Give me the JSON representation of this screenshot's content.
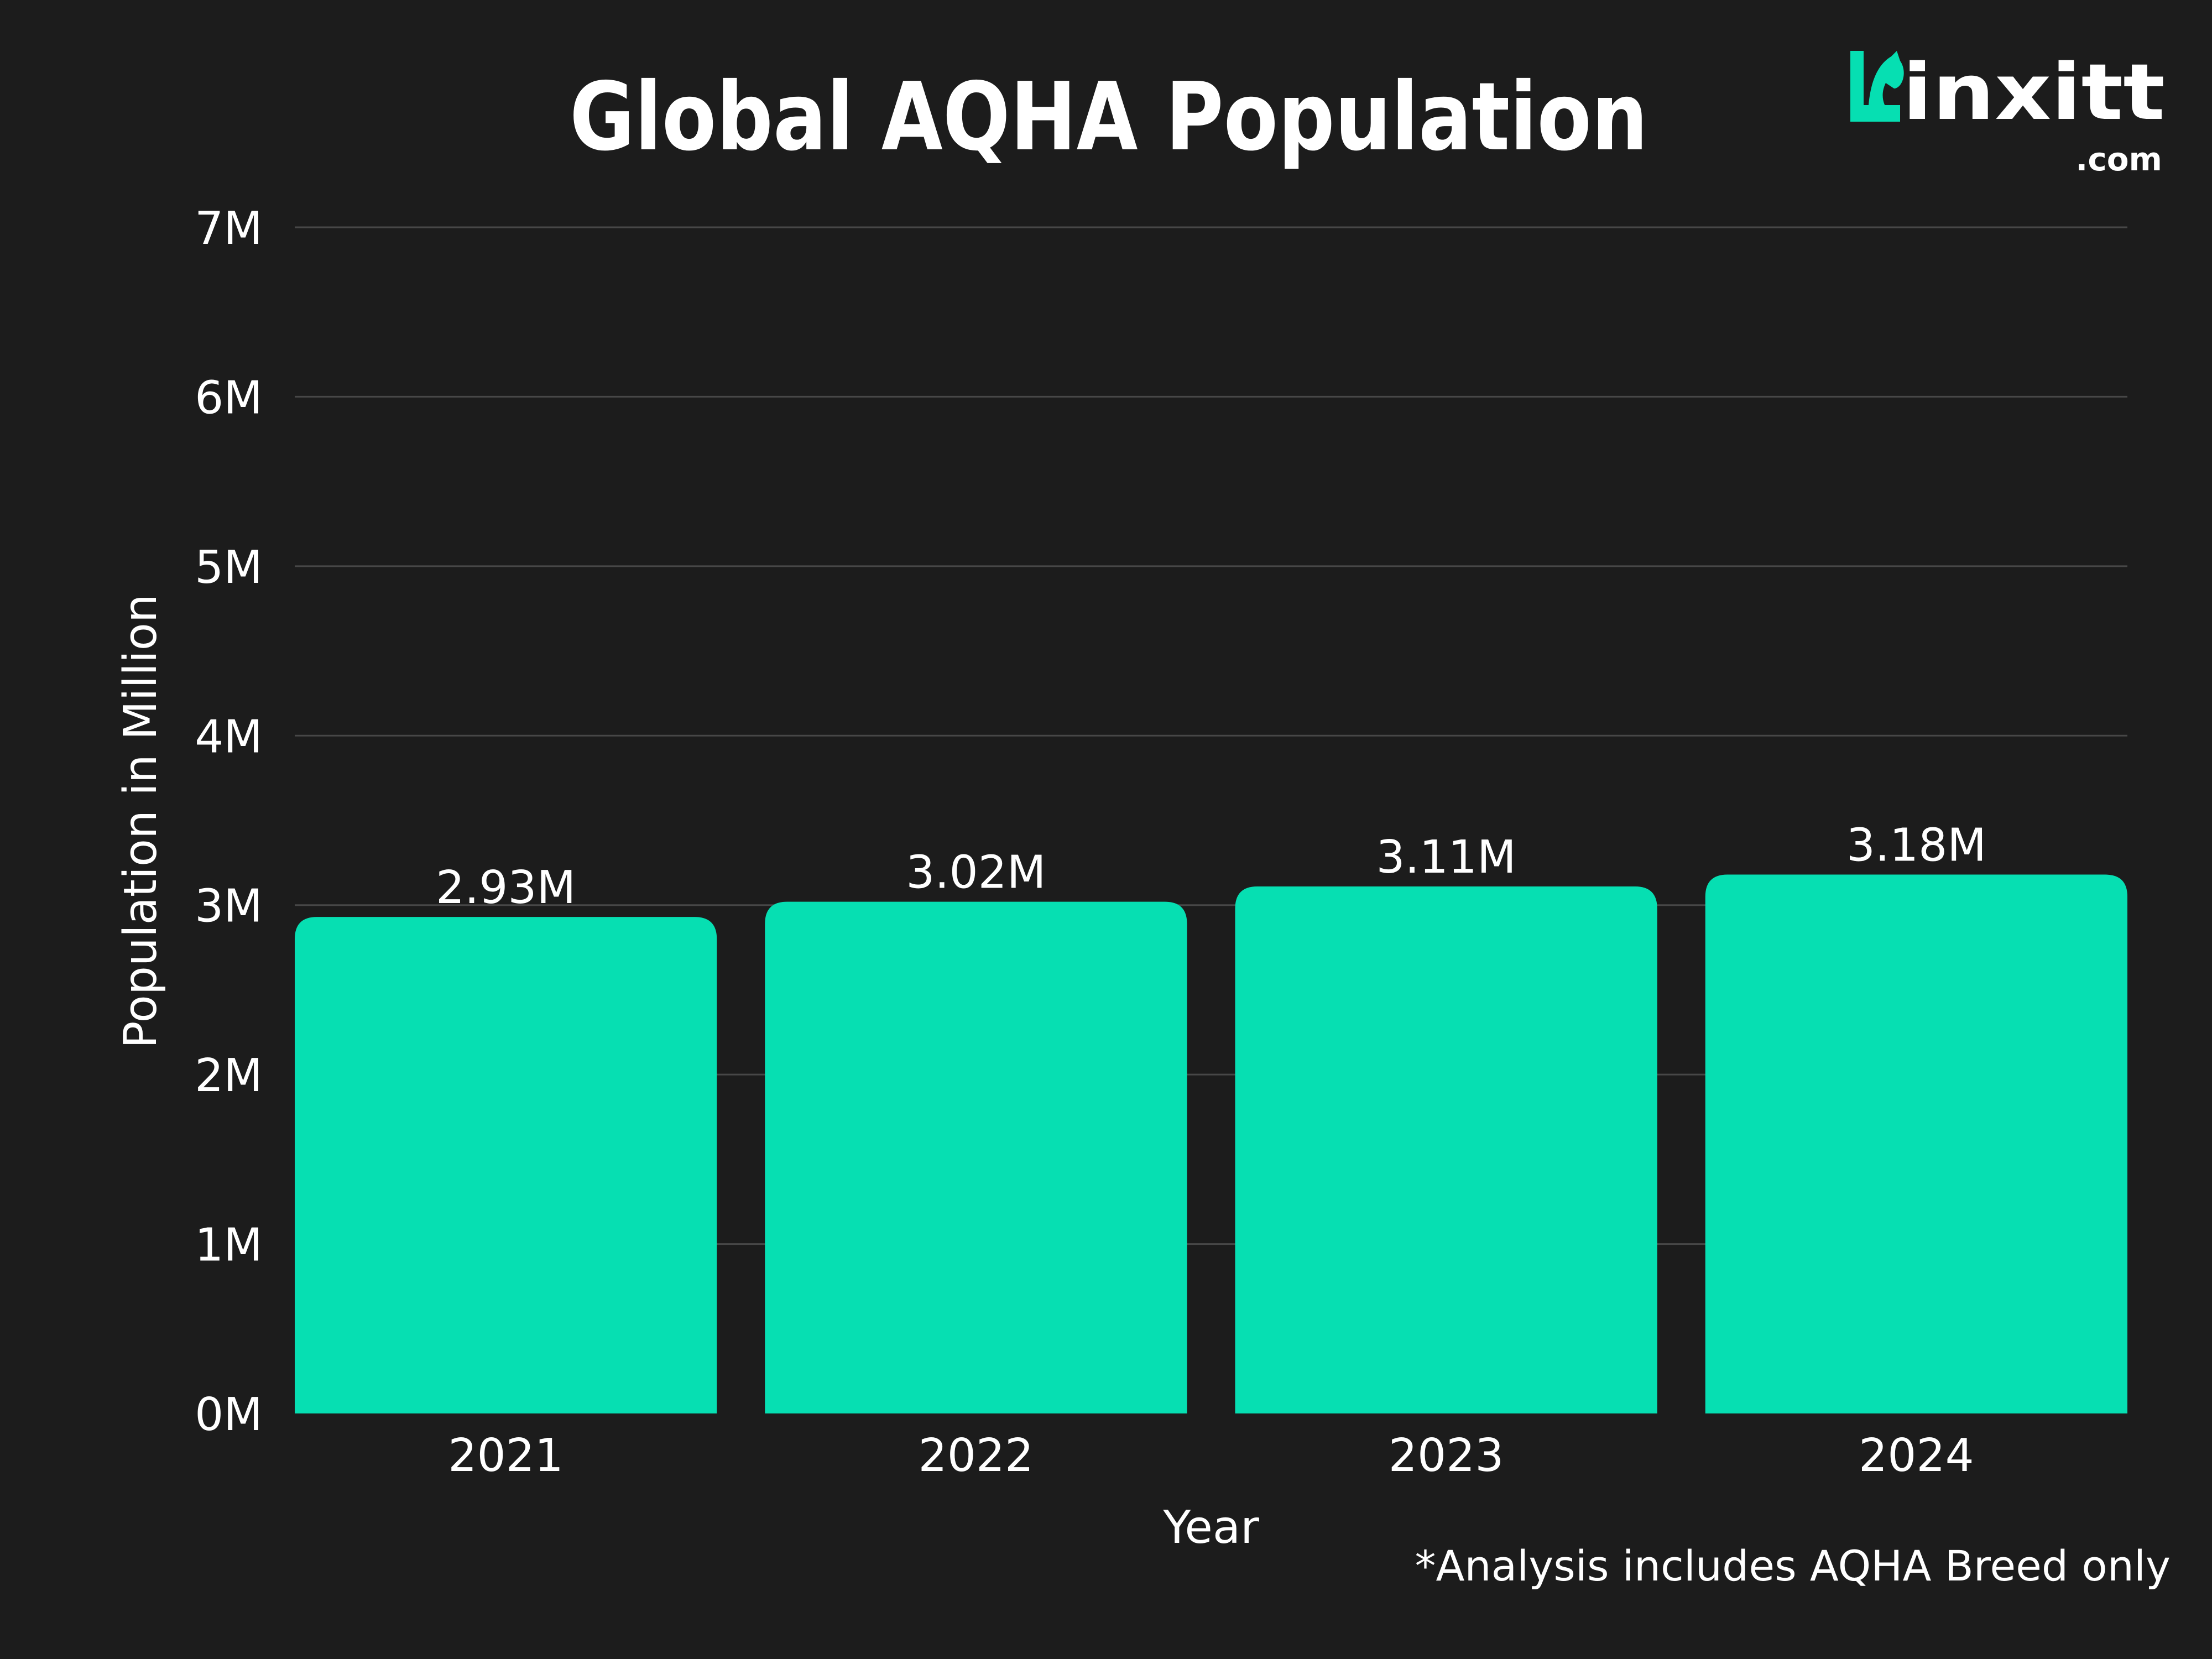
{
  "logo": {
    "text": "inxitt",
    "suffix": ".com"
  },
  "chart_data": {
    "type": "bar",
    "title": "Global AQHA Population",
    "xlabel": "Year",
    "ylabel": "Population in Million",
    "categories": [
      "2021",
      "2022",
      "2023",
      "2024"
    ],
    "values": [
      2.93,
      3.02,
      3.11,
      3.18
    ],
    "data_labels": [
      "2.93M",
      "3.02M",
      "3.11M",
      "3.18M"
    ],
    "ylim": [
      0,
      7
    ],
    "yticks": [
      "0M",
      "1M",
      "2M",
      "3M",
      "4M",
      "5M",
      "6M",
      "7M"
    ],
    "grid": true,
    "bar_color": "#06dfb2",
    "background": "#1c1c1c",
    "footnote": "*Analysis includes AQHA Breed only"
  }
}
